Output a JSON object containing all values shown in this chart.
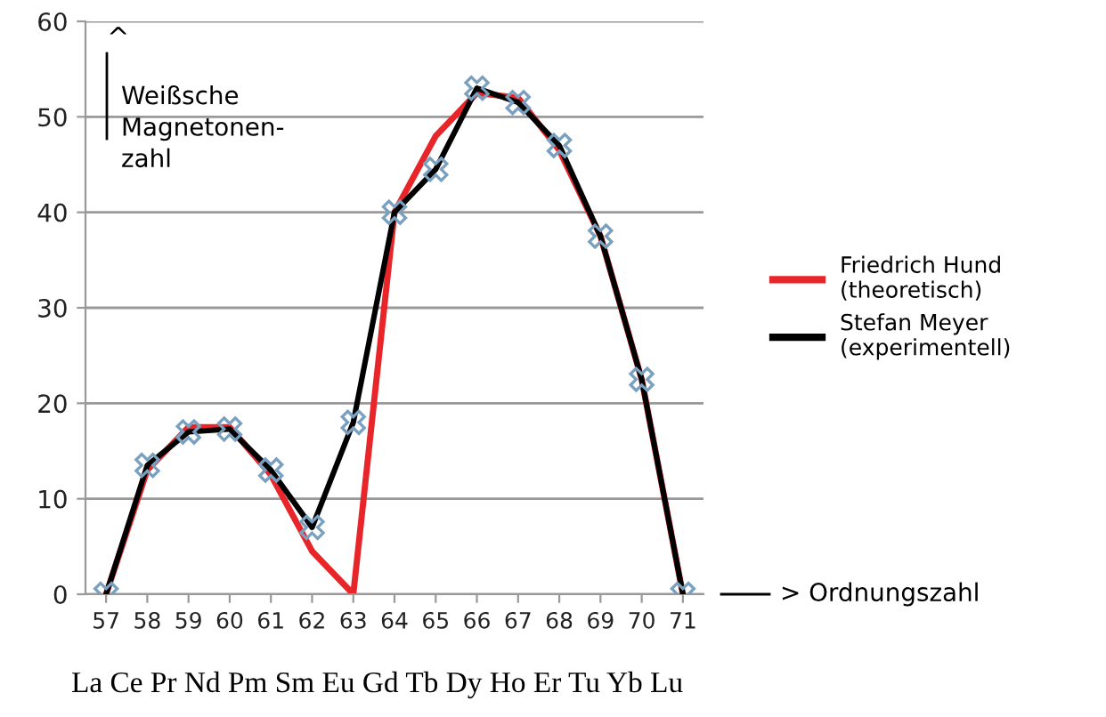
{
  "chart_data": {
    "type": "line",
    "categories": [
      "57",
      "58",
      "59",
      "60",
      "61",
      "62",
      "63",
      "64",
      "65",
      "66",
      "67",
      "68",
      "69",
      "70",
      "71"
    ],
    "series": [
      {
        "name": "Friedrich Hund\n(theoretisch)",
        "color": "#e8262a",
        "values": [
          0,
          13,
          17.5,
          17.5,
          12.5,
          4.5,
          0,
          40,
          48,
          52.5,
          52,
          46.5,
          37.5,
          22.5,
          0
        ]
      },
      {
        "name": "Stefan Meyer\n(experimentell)",
        "color": "#000000",
        "marker": "cross",
        "values": [
          0,
          13.5,
          17,
          17.3,
          13,
          7,
          18,
          40,
          44.5,
          53,
          51.5,
          47,
          37.5,
          22.5,
          0
        ]
      }
    ],
    "ylim": [
      0,
      60
    ],
    "yticks": [
      0,
      10,
      20,
      30,
      40,
      50,
      60
    ],
    "grid": "y",
    "legend": "right",
    "annotations": [
      "^",
      "Weißsche\nMagnetonen-\nzahl",
      "> Ordnungszahl",
      "La Ce Pr Nd Pm Sm Eu Gd Tb Dy Ho Er Tu Yb Lu"
    ]
  }
}
